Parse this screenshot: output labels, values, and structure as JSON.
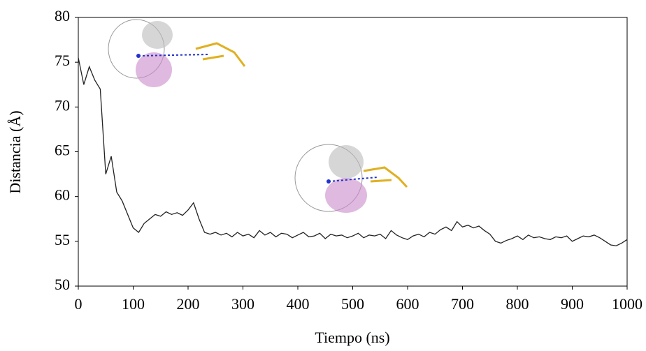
{
  "chart_data": {
    "type": "line",
    "xlabel": "Tiempo (ns)",
    "ylabel": "Distancia (Å)",
    "x": [
      0,
      10,
      20,
      30,
      40,
      50,
      60,
      70,
      80,
      90,
      100,
      110,
      120,
      130,
      140,
      150,
      160,
      170,
      180,
      190,
      200,
      210,
      220,
      230,
      240,
      250,
      260,
      270,
      280,
      290,
      300,
      310,
      320,
      330,
      340,
      350,
      360,
      370,
      380,
      390,
      400,
      410,
      420,
      430,
      440,
      450,
      460,
      470,
      480,
      490,
      500,
      510,
      520,
      530,
      540,
      550,
      560,
      570,
      580,
      590,
      600,
      610,
      620,
      630,
      640,
      650,
      660,
      670,
      680,
      690,
      700,
      710,
      720,
      730,
      740,
      750,
      760,
      770,
      780,
      790,
      800,
      810,
      820,
      830,
      840,
      850,
      860,
      870,
      880,
      890,
      900,
      910,
      920,
      930,
      940,
      950,
      960,
      970,
      980,
      990,
      1000
    ],
    "values": [
      75.5,
      72.5,
      74.5,
      73,
      72,
      62.5,
      64.5,
      60.5,
      59.5,
      58,
      56.5,
      56,
      57,
      57.5,
      58,
      57.8,
      58.3,
      58,
      58.2,
      57.9,
      58.5,
      59.3,
      57.5,
      56,
      55.8,
      56,
      55.7,
      55.9,
      55.5,
      56,
      55.6,
      55.8,
      55.4,
      56.2,
      55.7,
      56,
      55.5,
      55.9,
      55.8,
      55.4,
      55.7,
      56,
      55.5,
      55.6,
      55.9,
      55.3,
      55.8,
      55.6,
      55.7,
      55.4,
      55.6,
      55.9,
      55.4,
      55.7,
      55.6,
      55.8,
      55.3,
      56.2,
      55.7,
      55.4,
      55.2,
      55.6,
      55.8,
      55.5,
      56,
      55.8,
      56.3,
      56.6,
      56.2,
      57.2,
      56.6,
      56.8,
      56.5,
      56.7,
      56.2,
      55.8,
      55,
      54.8,
      55.1,
      55.3,
      55.6,
      55.2,
      55.7,
      55.4,
      55.5,
      55.3,
      55.2,
      55.5,
      55.4,
      55.6,
      55,
      55.3,
      55.6,
      55.5,
      55.7,
      55.4,
      55,
      54.6,
      54.5,
      54.8,
      55.2
    ],
    "color": "#222222",
    "xlim": [
      0,
      1000
    ],
    "xticks": [
      0,
      100,
      200,
      300,
      400,
      500,
      600,
      700,
      800,
      900,
      1000
    ],
    "ylim": [
      50,
      80
    ],
    "yticks": [
      50,
      55,
      60,
      65,
      70,
      75,
      80
    ]
  }
}
